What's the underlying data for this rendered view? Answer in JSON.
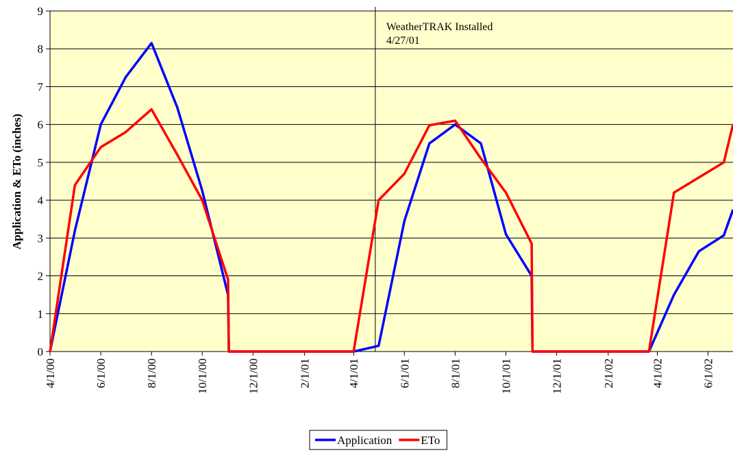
{
  "chart_data": {
    "type": "line",
    "y_label": "Application & ETo (inches)",
    "x": [
      "4/1/00",
      "5/1/00",
      "6/1/00",
      "7/1/00",
      "8/1/00",
      "9/1/00",
      "10/1/00",
      "11/1/00",
      "11/2/00",
      "4/1/01",
      "5/1/01",
      "6/1/01",
      "7/1/01",
      "8/1/01",
      "9/1/01",
      "10/1/01",
      "11/1/01",
      "11/2/01",
      "3/22/02",
      "4/21/02",
      "5/21/02",
      "6/20/02",
      "7/1/02"
    ],
    "series": [
      {
        "name": "Application",
        "color": "#0000ff",
        "values": [
          0,
          3.2,
          6.0,
          7.25,
          8.15,
          6.45,
          4.25,
          1.5,
          0,
          0,
          0.15,
          3.45,
          5.5,
          6.0,
          5.5,
          3.1,
          2.0,
          0,
          0,
          1.5,
          2.65,
          3.07,
          3.75
        ]
      },
      {
        "name": "ETo",
        "color": "#ff0000",
        "values": [
          0,
          4.4,
          5.4,
          5.8,
          6.4,
          5.2,
          4.0,
          1.9,
          0,
          0,
          4.0,
          4.7,
          5.98,
          6.1,
          5.1,
          4.2,
          2.85,
          0,
          0,
          4.2,
          4.6,
          5.0,
          6.0
        ]
      }
    ],
    "xlim": [
      "4/1/00",
      "7/1/02"
    ],
    "xticks": [
      "4/1/00",
      "6/1/00",
      "8/1/00",
      "10/1/00",
      "12/1/00",
      "2/1/01",
      "4/1/01",
      "6/1/01",
      "8/1/01",
      "10/1/01",
      "12/1/01",
      "2/1/02",
      "4/1/02",
      "6/1/02"
    ],
    "ylim": [
      0,
      9
    ],
    "yticks": [
      0,
      1,
      2,
      3,
      4,
      5,
      6,
      7,
      8,
      9
    ],
    "grid": true,
    "background": "#ffffcc",
    "annotation": {
      "label": "WeatherTRAK Installed",
      "date": "4/27/01"
    },
    "legend": "bottom"
  }
}
